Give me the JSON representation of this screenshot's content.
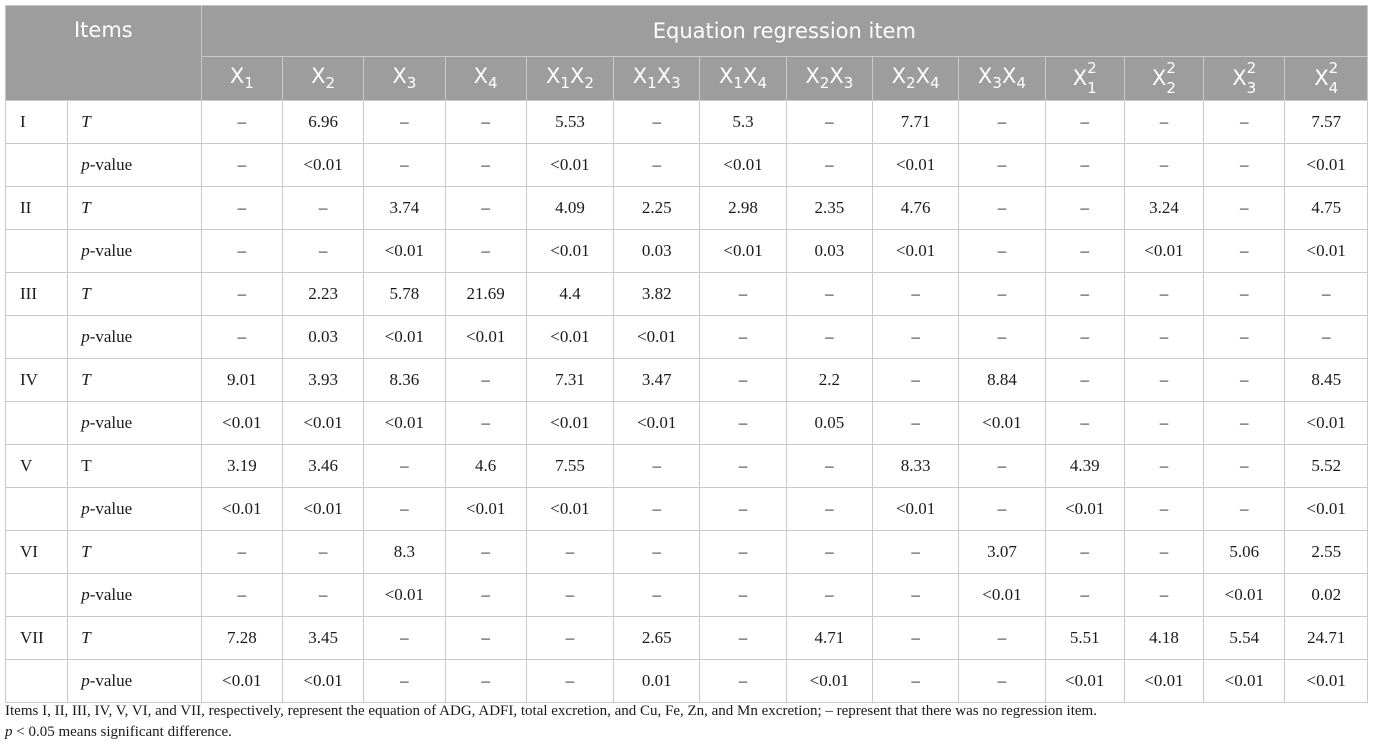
{
  "header": {
    "items_label": "Items",
    "group_label": "Equation regression item",
    "columns": [
      {
        "base": "X",
        "sub": "1"
      },
      {
        "base": "X",
        "sub": "2"
      },
      {
        "base": "X",
        "sub": "3"
      },
      {
        "base": "X",
        "sub": "4"
      },
      {
        "base": "X",
        "sub": "1",
        "base2": "X",
        "sub2": "2"
      },
      {
        "base": "X",
        "sub": "1",
        "base2": "X",
        "sub2": "3"
      },
      {
        "base": "X",
        "sub": "1",
        "base2": "X",
        "sub2": "4"
      },
      {
        "base": "X",
        "sub": "2",
        "base2": "X",
        "sub2": "3"
      },
      {
        "base": "X",
        "sub": "2",
        "base2": "X",
        "sub2": "4"
      },
      {
        "base": "X",
        "sub": "3",
        "base2": "X",
        "sub2": "4"
      },
      {
        "base": "X",
        "sub": "1",
        "sup": "2"
      },
      {
        "base": "X",
        "sub": "2",
        "sup": "2"
      },
      {
        "base": "X",
        "sub": "3",
        "sup": "2"
      },
      {
        "base": "X",
        "sub": "4",
        "sup": "2"
      }
    ]
  },
  "rows": [
    {
      "item": "I",
      "stat": "T",
      "italic": true,
      "values": [
        "–",
        "6.96",
        "–",
        "–",
        "5.53",
        "–",
        "5.3",
        "–",
        "7.71",
        "–",
        "–",
        "–",
        "–",
        "7.57"
      ]
    },
    {
      "item": "",
      "stat": "p-value",
      "values": [
        "–",
        "<0.01",
        "–",
        "–",
        "<0.01",
        "–",
        "<0.01",
        "–",
        "<0.01",
        "–",
        "–",
        "–",
        "–",
        "<0.01"
      ]
    },
    {
      "item": "II",
      "stat": "T",
      "italic": true,
      "values": [
        "–",
        "–",
        "3.74",
        "–",
        "4.09",
        "2.25",
        "2.98",
        "2.35",
        "4.76",
        "–",
        "–",
        "3.24",
        "–",
        "4.75"
      ]
    },
    {
      "item": "",
      "stat": "p-value",
      "values": [
        "–",
        "–",
        "<0.01",
        "–",
        "<0.01",
        "0.03",
        "<0.01",
        "0.03",
        "<0.01",
        "–",
        "–",
        "<0.01",
        "–",
        "<0.01"
      ]
    },
    {
      "item": "III",
      "stat": "T",
      "italic": true,
      "values": [
        "–",
        "2.23",
        "5.78",
        "21.69",
        "4.4",
        "3.82",
        "–",
        "–",
        "–",
        "–",
        "–",
        "–",
        "–",
        "–"
      ]
    },
    {
      "item": "",
      "stat": "p-value",
      "values": [
        "–",
        "0.03",
        "<0.01",
        "<0.01",
        "<0.01",
        "<0.01",
        "–",
        "–",
        "–",
        "–",
        "–",
        "–",
        "–",
        "–"
      ]
    },
    {
      "item": "IV",
      "stat": "T",
      "italic": true,
      "values": [
        "9.01",
        "3.93",
        "8.36",
        "–",
        "7.31",
        "3.47",
        "–",
        "2.2",
        "–",
        "8.84",
        "–",
        "–",
        "–",
        "8.45"
      ]
    },
    {
      "item": "",
      "stat": "p-value",
      "values": [
        "<0.01",
        "<0.01",
        "<0.01",
        "–",
        "<0.01",
        "<0.01",
        "–",
        "0.05",
        "–",
        "<0.01",
        "–",
        "–",
        "–",
        "<0.01"
      ]
    },
    {
      "item": "V",
      "stat": "T",
      "italic": false,
      "values": [
        "3.19",
        "3.46",
        "–",
        "4.6",
        "7.55",
        "–",
        "–",
        "–",
        "8.33",
        "–",
        "4.39",
        "–",
        "–",
        "5.52"
      ]
    },
    {
      "item": "",
      "stat": "p-value",
      "values": [
        "<0.01",
        "<0.01",
        "–",
        "<0.01",
        "<0.01",
        "–",
        "–",
        "–",
        "<0.01",
        "–",
        "<0.01",
        "–",
        "–",
        "<0.01"
      ]
    },
    {
      "item": "VI",
      "stat": "T",
      "italic": true,
      "values": [
        "–",
        "–",
        "8.3",
        "–",
        "–",
        "–",
        "–",
        "–",
        "–",
        "3.07",
        "–",
        "–",
        "5.06",
        "2.55"
      ]
    },
    {
      "item": "",
      "stat": "p-value",
      "values": [
        "–",
        "–",
        "<0.01",
        "–",
        "–",
        "–",
        "–",
        "–",
        "–",
        "<0.01",
        "–",
        "–",
        "<0.01",
        "0.02"
      ]
    },
    {
      "item": "VII",
      "stat": "T",
      "italic": true,
      "values": [
        "7.28",
        "3.45",
        "–",
        "–",
        "–",
        "2.65",
        "–",
        "4.71",
        "–",
        "–",
        "5.51",
        "4.18",
        "5.54",
        "24.71"
      ]
    },
    {
      "item": "",
      "stat": "p-value",
      "values": [
        "<0.01",
        "<0.01",
        "–",
        "–",
        "–",
        "0.01",
        "–",
        "<0.01",
        "–",
        "–",
        "<0.01",
        "<0.01",
        "<0.01",
        "<0.01"
      ]
    }
  ],
  "notes": {
    "line1": "Items I, II, III, IV, V, VI, and VII, respectively, represent the equation of ADG, ADFI, total excretion, and Cu, Fe, Zn, and Mn excretion; – represent that there was no regression item.",
    "line2_p": "p",
    "line2_rest": " < 0.05 means significant difference."
  }
}
